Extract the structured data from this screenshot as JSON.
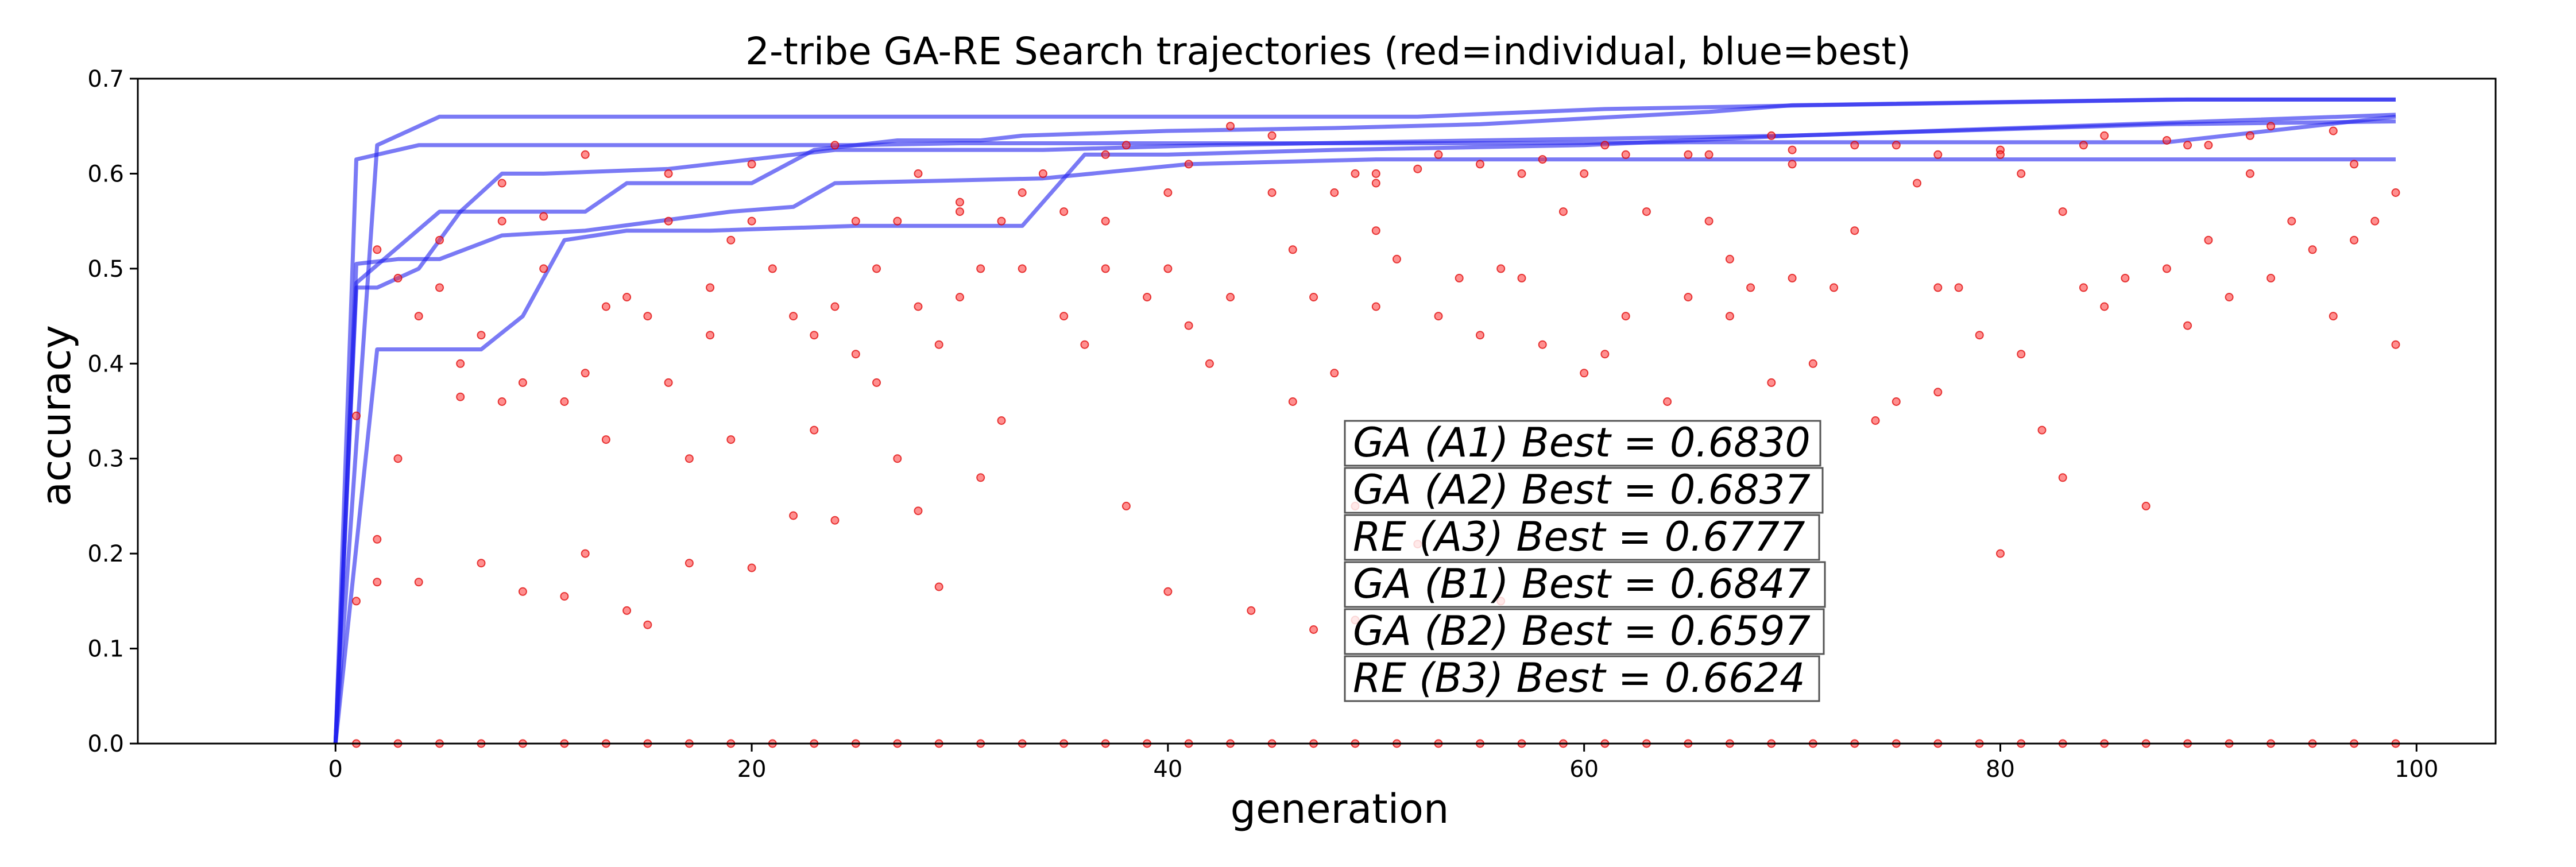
{
  "chart_data": {
    "type": "line",
    "title": "2-tribe GA-RE Search trajectories (red=individual, blue=best)",
    "xlabel": "generation",
    "ylabel": "accuracy",
    "xlim": [
      -9.5,
      103.8
    ],
    "ylim": [
      0.0,
      0.7
    ],
    "x_ticks": [
      0,
      20,
      40,
      60,
      80,
      100
    ],
    "y_ticks": [
      0.0,
      0.1,
      0.2,
      0.3,
      0.4,
      0.5,
      0.6,
      0.7
    ],
    "grid": false,
    "series": [
      {
        "color": "#2222ee",
        "x": [
          0,
          1,
          5,
          8,
          12,
          14,
          20,
          23,
          27,
          31,
          33,
          40,
          48,
          55,
          60,
          66,
          70,
          88,
          99
        ],
        "y": [
          0.0,
          0.485,
          0.56,
          0.56,
          0.56,
          0.59,
          0.59,
          0.625,
          0.635,
          0.635,
          0.64,
          0.645,
          0.648,
          0.652,
          0.658,
          0.665,
          0.672,
          0.678,
          0.678
        ]
      },
      {
        "color": "#2222ee",
        "x": [
          0,
          2,
          5,
          8,
          13,
          20,
          25,
          40,
          52,
          61,
          71,
          89,
          99
        ],
        "y": [
          0.0,
          0.63,
          0.66,
          0.66,
          0.66,
          0.66,
          0.66,
          0.66,
          0.66,
          0.668,
          0.672,
          0.678,
          0.678
        ]
      },
      {
        "color": "#2222ee",
        "x": [
          0,
          1,
          4,
          8,
          12,
          16,
          25,
          30,
          38,
          47,
          55,
          65,
          88,
          99
        ],
        "y": [
          0.0,
          0.615,
          0.63,
          0.63,
          0.63,
          0.63,
          0.63,
          0.632,
          0.632,
          0.632,
          0.632,
          0.633,
          0.633,
          0.66
        ]
      },
      {
        "color": "#2222ee",
        "x": [
          0,
          1,
          3,
          5,
          8,
          12,
          19,
          22,
          24,
          34,
          41,
          50,
          99
        ],
        "y": [
          0.0,
          0.505,
          0.51,
          0.51,
          0.535,
          0.54,
          0.56,
          0.565,
          0.59,
          0.595,
          0.61,
          0.615,
          0.615
        ]
      },
      {
        "color": "#2222ee",
        "x": [
          0,
          1,
          2,
          4,
          6,
          8,
          10,
          16,
          24,
          34,
          42,
          55,
          70,
          88,
          99
        ],
        "y": [
          0.0,
          0.48,
          0.48,
          0.5,
          0.56,
          0.6,
          0.6,
          0.605,
          0.625,
          0.625,
          0.63,
          0.635,
          0.64,
          0.652,
          0.655
        ]
      },
      {
        "color": "#2222ee",
        "x": [
          0,
          2,
          7,
          9,
          11,
          14,
          18,
          25,
          29,
          33,
          36,
          40,
          48,
          60,
          70,
          90,
          99
        ],
        "y": [
          0.0,
          0.415,
          0.415,
          0.45,
          0.53,
          0.54,
          0.54,
          0.545,
          0.545,
          0.545,
          0.62,
          0.62,
          0.625,
          0.63,
          0.64,
          0.655,
          0.662
        ]
      }
    ],
    "points": {
      "color": "#ff3333",
      "x": [
        1,
        1,
        2,
        2,
        3,
        3,
        4,
        4,
        5,
        6,
        6,
        7,
        7,
        8,
        8,
        9,
        9,
        10,
        11,
        11,
        12,
        12,
        13,
        13,
        14,
        14,
        15,
        15,
        16,
        16,
        17,
        17,
        18,
        18,
        19,
        19,
        20,
        21,
        22,
        22,
        23,
        23,
        24,
        24,
        25,
        25,
        26,
        26,
        27,
        27,
        28,
        28,
        29,
        29,
        30,
        30,
        31,
        31,
        32,
        32,
        33,
        34,
        35,
        35,
        36,
        37,
        37,
        38,
        38,
        39,
        40,
        40,
        41,
        42,
        43,
        43,
        44,
        45,
        46,
        46,
        47,
        47,
        48,
        48,
        49,
        49,
        50,
        50,
        51,
        52,
        53,
        54,
        55,
        56,
        56,
        57,
        58,
        59,
        60,
        61,
        62,
        63,
        64,
        65,
        66,
        67,
        67,
        68,
        69,
        70,
        71,
        72,
        73,
        74,
        75,
        76,
        77,
        77,
        78,
        79,
        80,
        81,
        82,
        83,
        83,
        84,
        85,
        86,
        87,
        88,
        89,
        90,
        91,
        92,
        93,
        94,
        95,
        96,
        97,
        98,
        99,
        99,
        50,
        52,
        55,
        58,
        62,
        66,
        70,
        75,
        80,
        84,
        88,
        92,
        96,
        10,
        20,
        30,
        40,
        50,
        60,
        70,
        80,
        90,
        2,
        5,
        8,
        12,
        16,
        20,
        24,
        28,
        33,
        37,
        41,
        45,
        49,
        53,
        57,
        61,
        65,
        69,
        73,
        77,
        81,
        85,
        89,
        93,
        97,
        1,
        3,
        5,
        7,
        9,
        11,
        13,
        15,
        17,
        19,
        21,
        23,
        25,
        27,
        29,
        31,
        33,
        35,
        37,
        39,
        41,
        43,
        45,
        47,
        49,
        51,
        53,
        55,
        57,
        59,
        61,
        63,
        65,
        67,
        69,
        71,
        73,
        75,
        77,
        79,
        81,
        83,
        85,
        87,
        89,
        91,
        93,
        95,
        97,
        99
      ],
      "y": [
        0.345,
        0.15,
        0.215,
        0.17,
        0.3,
        0.49,
        0.17,
        0.45,
        0.53,
        0.365,
        0.4,
        0.19,
        0.43,
        0.36,
        0.59,
        0.16,
        0.38,
        0.555,
        0.155,
        0.36,
        0.2,
        0.39,
        0.32,
        0.46,
        0.14,
        0.47,
        0.125,
        0.45,
        0.38,
        0.55,
        0.19,
        0.3,
        0.43,
        0.48,
        0.32,
        0.53,
        0.185,
        0.5,
        0.24,
        0.45,
        0.43,
        0.33,
        0.235,
        0.46,
        0.41,
        0.55,
        0.5,
        0.38,
        0.3,
        0.55,
        0.245,
        0.46,
        0.165,
        0.42,
        0.56,
        0.47,
        0.28,
        0.5,
        0.55,
        0.34,
        0.5,
        0.6,
        0.56,
        0.45,
        0.42,
        0.5,
        0.55,
        0.25,
        0.63,
        0.47,
        0.16,
        0.5,
        0.44,
        0.4,
        0.47,
        0.65,
        0.14,
        0.58,
        0.36,
        0.52,
        0.12,
        0.47,
        0.39,
        0.58,
        0.13,
        0.25,
        0.46,
        0.54,
        0.51,
        0.21,
        0.45,
        0.49,
        0.43,
        0.5,
        0.15,
        0.49,
        0.42,
        0.56,
        0.39,
        0.41,
        0.45,
        0.56,
        0.36,
        0.47,
        0.55,
        0.45,
        0.51,
        0.48,
        0.38,
        0.49,
        0.4,
        0.48,
        0.54,
        0.34,
        0.36,
        0.59,
        0.48,
        0.37,
        0.48,
        0.43,
        0.2,
        0.41,
        0.33,
        0.56,
        0.28,
        0.48,
        0.46,
        0.49,
        0.25,
        0.5,
        0.44,
        0.53,
        0.47,
        0.6,
        0.49,
        0.55,
        0.52,
        0.45,
        0.53,
        0.55,
        0.58,
        0.42,
        0.6,
        0.605,
        0.61,
        0.615,
        0.62,
        0.62,
        0.625,
        0.63,
        0.625,
        0.63,
        0.635,
        0.64,
        0.645,
        0.5,
        0.55,
        0.57,
        0.58,
        0.59,
        0.6,
        0.61,
        0.62,
        0.63,
        0.52,
        0.48,
        0.55,
        0.62,
        0.6,
        0.61,
        0.63,
        0.6,
        0.58,
        0.62,
        0.61,
        0.64,
        0.6,
        0.62,
        0.6,
        0.63,
        0.62,
        0.64,
        0.63,
        0.62,
        0.6,
        0.64,
        0.63,
        0.65,
        0.61,
        0.0,
        0.0,
        0.0,
        0.0,
        0.0,
        0.0,
        0.0,
        0.0,
        0.0,
        0.0,
        0.0,
        0.0,
        0.0,
        0.0,
        0.0,
        0.0,
        0.0,
        0.0,
        0.0,
        0.0,
        0.0,
        0.0,
        0.0,
        0.0,
        0.0,
        0.0,
        0.0,
        0.0,
        0.0,
        0.0,
        0.0,
        0.0,
        0.0,
        0.0,
        0.0,
        0.0,
        0.0,
        0.0,
        0.0,
        0.0,
        0.0,
        0.0,
        0.0,
        0.0,
        0.0,
        0.0,
        0.0,
        0.0,
        0.0,
        0.0
      ]
    },
    "annotations": [
      "GA (A1) Best = 0.6830",
      "GA (A2) Best = 0.6837",
      "RE (A3) Best = 0.6777",
      "GA (B1) Best = 0.6847",
      "GA (B2) Best = 0.6597",
      "RE (B3) Best = 0.6624"
    ]
  }
}
